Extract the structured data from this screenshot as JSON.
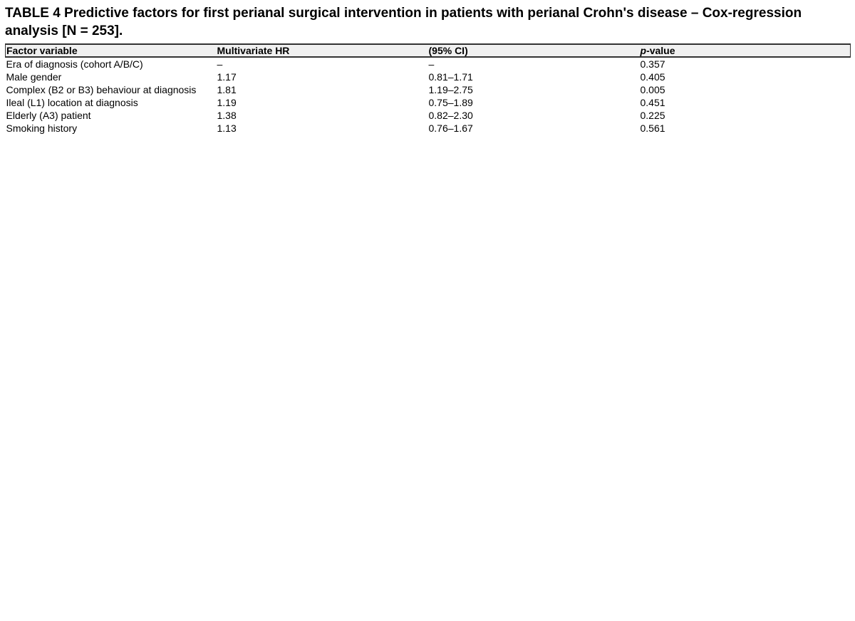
{
  "title": "TABLE 4 Predictive factors for first perianal surgical intervention in patients with perianal Crohn's disease – Cox-regression analysis [N = 253].",
  "table": {
    "header": [
      "Factor variable",
      "Multivariate HR",
      "(95% CI)",
      {
        "italic": "p",
        "text": "-value"
      }
    ],
    "rows": [
      [
        "Era of diagnosis (cohort A/B/C)",
        "–",
        "–",
        "0.357"
      ],
      [
        "Male gender",
        "1.17",
        "0.81–1.71",
        "0.405"
      ],
      [
        "Complex (B2 or B3) behaviour at diagnosis",
        "1.81",
        "1.19–2.75",
        "0.005"
      ],
      [
        "Ileal (L1) location at diagnosis",
        "1.19",
        "0.75–1.89",
        "0.451"
      ],
      [
        "Elderly (A3) patient",
        "1.38",
        "0.82–2.30",
        "0.225"
      ],
      [
        "Smoking history",
        "1.13",
        "0.76–1.67",
        "0.561"
      ]
    ]
  }
}
